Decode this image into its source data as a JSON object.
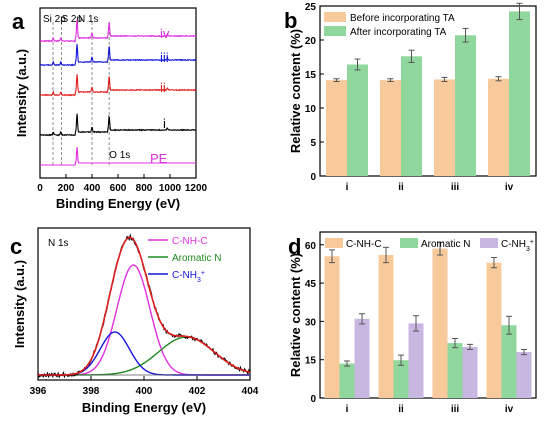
{
  "chart_data": [
    {
      "panel": "a",
      "type": "line",
      "xlabel": "Binding Energy (eV)",
      "ylabel": "Intensity (a.u.)",
      "xlim": [
        0,
        1200
      ],
      "xticks": [
        "0",
        "200",
        "400",
        "600",
        "800",
        "1000",
        "1200"
      ],
      "peak_labels": [
        {
          "text": "Si 2p",
          "x": 100
        },
        {
          "text": "S 2p",
          "x": 165
        },
        {
          "text": "N 1s",
          "x": 400
        },
        {
          "text": "O 1s",
          "x": 532
        }
      ],
      "series": [
        {
          "name": "iv",
          "color": "#e030e0"
        },
        {
          "name": "iii",
          "color": "#1515d8"
        },
        {
          "name": "ii",
          "color": "#e02020"
        },
        {
          "name": "i",
          "color": "#000000"
        },
        {
          "name": "PE",
          "color": "#e030e0"
        }
      ]
    },
    {
      "panel": "b",
      "type": "bar",
      "ylabel": "Relative content (%)",
      "ylim": [
        0,
        25
      ],
      "yticks": [
        "0",
        "5",
        "10",
        "15",
        "20",
        "25"
      ],
      "categories": [
        "i",
        "ii",
        "iii",
        "iv"
      ],
      "legend_placement": "top-left",
      "series": [
        {
          "name": "Before incorporating TA",
          "color": "#f8c99a",
          "values": [
            14.1,
            14.1,
            14.2,
            14.3
          ],
          "errors": [
            0.2,
            0.2,
            0.3,
            0.3
          ]
        },
        {
          "name": "After incorporating TA",
          "color": "#8fd79d",
          "values": [
            16.4,
            17.6,
            20.7,
            24.2
          ],
          "errors": [
            0.8,
            0.9,
            1.0,
            1.2
          ]
        }
      ]
    },
    {
      "panel": "c",
      "type": "line",
      "annotation": "N 1s",
      "xlabel": "Binding Energy (eV)",
      "ylabel": "Intensity (a.u.)",
      "xlim": [
        396,
        404
      ],
      "xticks": [
        "396",
        "398",
        "400",
        "402",
        "404"
      ],
      "legend": [
        {
          "name": "C-NH-C",
          "color": "#e030e0"
        },
        {
          "name": "Aromatic N",
          "color": "#1f8a1f"
        },
        {
          "name": "C-NH3+",
          "color": "#1515d8"
        }
      ]
    },
    {
      "panel": "d",
      "type": "bar",
      "ylabel": "Relative content (%)",
      "ylim": [
        0,
        65
      ],
      "yticks": [
        "0",
        "15",
        "30",
        "45",
        "60"
      ],
      "categories": [
        "i",
        "ii",
        "iii",
        "iv"
      ],
      "legend_placement": "top",
      "series": [
        {
          "name": "C-NH-C",
          "color": "#f8c99a",
          "values": [
            55.5,
            56.0,
            58.5,
            53.0
          ],
          "errors": [
            2.5,
            3.0,
            2.5,
            2.0
          ]
        },
        {
          "name": "Aromatic N",
          "color": "#8fd79d",
          "values": [
            13.5,
            14.8,
            21.5,
            28.5
          ],
          "errors": [
            1.0,
            2.0,
            1.8,
            3.5
          ]
        },
        {
          "name": "C-NH3+",
          "color": "#c8b7e0",
          "values": [
            31.0,
            29.2,
            20.0,
            18.0
          ],
          "errors": [
            2.0,
            3.0,
            1.0,
            1.0
          ]
        }
      ]
    }
  ]
}
